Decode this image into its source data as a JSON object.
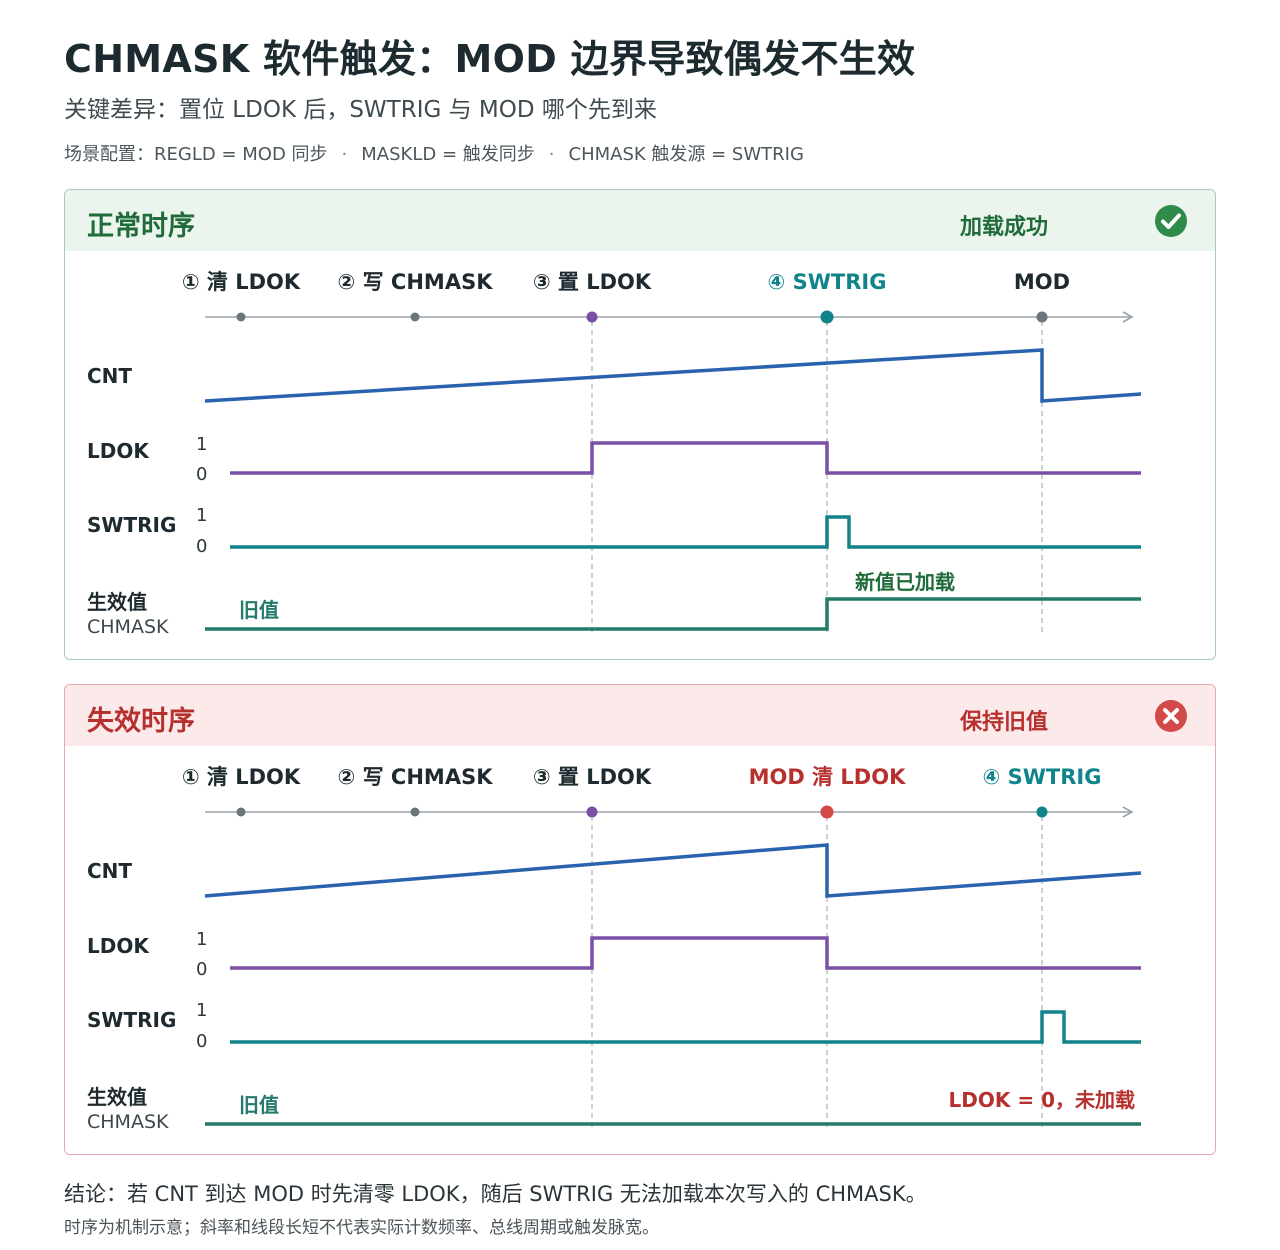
{
  "title": "CHMASK 软件触发：MOD 边界导致偶发不生效",
  "subtitle": "关键差异：置位 LDOK 后，SWTRIG 与 MOD 哪个先到来",
  "config": {
    "items": [
      "场景配置：REGLD = MOD 同步",
      "MASKLD = 触发同步",
      "CHMASK 触发源 = SWTRIG"
    ],
    "separator": "·"
  },
  "row_labels": {
    "cnt": "CNT",
    "ldok": "LDOK",
    "swtrig": "SWTRIG",
    "effective": "生效值",
    "effective_sub": "CHMASK"
  },
  "levels": {
    "high": "1",
    "low": "0"
  },
  "old_value_label": "旧值",
  "colors": {
    "cnt": "#2a63ad",
    "ldok": "#7a4fa6",
    "swtrig": "#10848a",
    "effective": "#237a6a",
    "ok": "#1f6b3a",
    "bad": "#b6302d",
    "neutral": "#5f6b70"
  },
  "normal": {
    "title": "正常时序",
    "status": "加载成功",
    "status_icon": "check-circle-icon",
    "events": [
      "① 清 LDOK",
      "② 写 CHMASK",
      "③ 置 LDOK",
      "④ SWTRIG",
      "MOD"
    ],
    "annotation": "新值已加载"
  },
  "failure": {
    "title": "失效时序",
    "status": "保持旧值",
    "status_icon": "x-circle-icon",
    "events": [
      "① 清 LDOK",
      "② 写 CHMASK",
      "③ 置 LDOK",
      "MOD 清 LDOK",
      "④ SWTRIG"
    ],
    "annotation": "LDOK = 0，未加载"
  },
  "conclusion": "结论：若 CNT 到达 MOD 时先清零 LDOK，随后 SWTRIG 无法加载本次写入的 CHMASK。",
  "note": "时序为机制示意；斜率和线段长短不代表实际计数频率、总线周期或触发脉宽。"
}
